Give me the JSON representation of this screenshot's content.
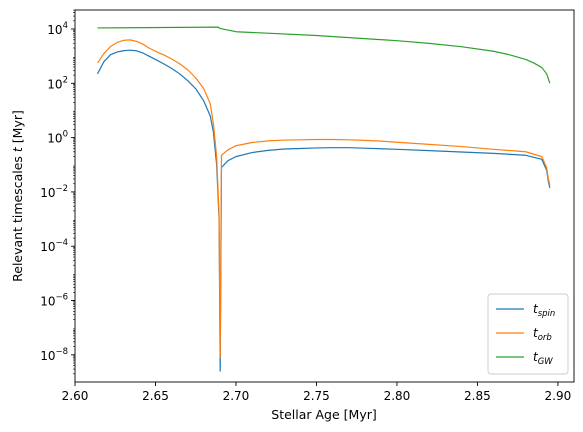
{
  "chart_data": {
    "type": "line",
    "xlabel": "Stellar Age [Myr]",
    "ylabel": "Relevant timescales t [Myr]",
    "xlim": [
      2.6,
      2.91
    ],
    "ylim_log10": [
      -9.0,
      4.7
    ],
    "yscale": "log",
    "grid": false,
    "legend_position": "lower-right",
    "x_ticks": [
      2.6,
      2.65,
      2.7,
      2.75,
      2.8,
      2.85,
      2.9
    ],
    "x_tick_labels": [
      "2.60",
      "2.65",
      "2.70",
      "2.75",
      "2.80",
      "2.85",
      "2.90"
    ],
    "y_ticks_log10": [
      4,
      2,
      0,
      -2,
      -4,
      -6,
      -8
    ],
    "y_tick_labels": [
      {
        "base": "10",
        "exp": "4"
      },
      {
        "base": "10",
        "exp": "2"
      },
      {
        "base": "10",
        "exp": "0"
      },
      {
        "base": "10",
        "exp": "−2"
      },
      {
        "base": "10",
        "exp": "−4"
      },
      {
        "base": "10",
        "exp": "−6"
      },
      {
        "base": "10",
        "exp": "−8"
      }
    ],
    "series": [
      {
        "name_base": "t",
        "name_sub": "spin",
        "color": "#1f77b4",
        "x": [
          2.614,
          2.618,
          2.622,
          2.626,
          2.63,
          2.634,
          2.638,
          2.642,
          2.646,
          2.65,
          2.655,
          2.66,
          2.665,
          2.67,
          2.675,
          2.68,
          2.684,
          2.686,
          2.688,
          2.6895,
          2.6902,
          2.691,
          2.695,
          2.7,
          2.71,
          2.72,
          2.73,
          2.74,
          2.75,
          2.76,
          2.77,
          2.78,
          2.79,
          2.8,
          2.82,
          2.84,
          2.86,
          2.88,
          2.89,
          2.893,
          2.894,
          2.895
        ],
        "log10_y": [
          2.35,
          2.8,
          3.05,
          3.15,
          3.2,
          3.22,
          3.2,
          3.12,
          3.0,
          2.88,
          2.72,
          2.55,
          2.35,
          2.1,
          1.8,
          1.35,
          0.8,
          0.2,
          -1.0,
          -3.0,
          -8.6,
          -1.1,
          -0.85,
          -0.7,
          -0.55,
          -0.47,
          -0.42,
          -0.4,
          -0.38,
          -0.37,
          -0.37,
          -0.39,
          -0.41,
          -0.43,
          -0.48,
          -0.53,
          -0.58,
          -0.65,
          -0.8,
          -1.2,
          -1.6,
          -1.85
        ]
      },
      {
        "name_base": "t",
        "name_sub": "orb",
        "color": "#ff7f0e",
        "x": [
          2.614,
          2.618,
          2.622,
          2.626,
          2.63,
          2.634,
          2.638,
          2.642,
          2.646,
          2.65,
          2.655,
          2.66,
          2.665,
          2.67,
          2.675,
          2.68,
          2.684,
          2.686,
          2.688,
          2.6895,
          2.6902,
          2.691,
          2.695,
          2.7,
          2.71,
          2.72,
          2.73,
          2.74,
          2.75,
          2.76,
          2.77,
          2.78,
          2.79,
          2.8,
          2.82,
          2.84,
          2.86,
          2.88,
          2.89,
          2.893,
          2.894,
          2.895
        ],
        "log10_y": [
          2.75,
          3.1,
          3.35,
          3.5,
          3.58,
          3.6,
          3.55,
          3.45,
          3.3,
          3.18,
          3.05,
          2.9,
          2.72,
          2.5,
          2.2,
          1.8,
          1.25,
          0.5,
          -0.7,
          -2.8,
          -8.1,
          -0.65,
          -0.45,
          -0.3,
          -0.18,
          -0.12,
          -0.09,
          -0.08,
          -0.07,
          -0.07,
          -0.08,
          -0.1,
          -0.13,
          -0.17,
          -0.25,
          -0.33,
          -0.43,
          -0.52,
          -0.7,
          -1.1,
          -1.5,
          -1.75
        ]
      },
      {
        "name_base": "t",
        "name_sub": "GW",
        "color": "#2ca02c",
        "x": [
          2.614,
          2.689,
          2.69,
          2.7,
          2.75,
          2.8,
          2.82,
          2.84,
          2.86,
          2.87,
          2.88,
          2.885,
          2.89,
          2.893,
          2.895
        ],
        "log10_y": [
          4.04,
          4.07,
          4.02,
          3.9,
          3.76,
          3.57,
          3.47,
          3.35,
          3.18,
          3.05,
          2.88,
          2.75,
          2.58,
          2.35,
          2.0
        ]
      }
    ]
  }
}
